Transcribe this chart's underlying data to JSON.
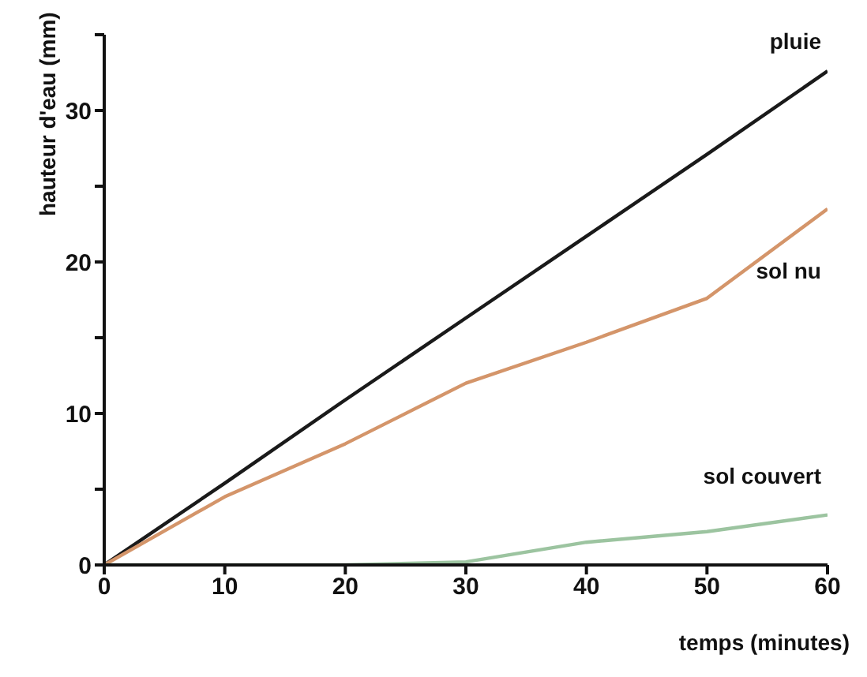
{
  "chart_data": {
    "type": "line",
    "xlabel": "temps (minutes)",
    "ylabel": "hauteur d'eau (mm)",
    "x": [
      0,
      10,
      20,
      30,
      40,
      50,
      60
    ],
    "series": [
      {
        "name": "pluie",
        "color": "#1a1a1a",
        "values": [
          0,
          5.4,
          10.9,
          16.3,
          21.7,
          27.1,
          32.6
        ]
      },
      {
        "name": "sol nu",
        "color": "#d4956a",
        "values": [
          0,
          4.5,
          8,
          12,
          14.7,
          17.6,
          23.5
        ]
      },
      {
        "name": "sol couvert",
        "color": "#9cc4a0",
        "values": [
          0,
          0,
          0,
          0.2,
          1.5,
          2.2,
          3.3
        ]
      }
    ],
    "xlim": [
      0,
      60
    ],
    "xticks": [
      0,
      10,
      20,
      30,
      40,
      50,
      60
    ],
    "ylim": [
      0,
      35
    ],
    "yticks": [
      0,
      {
        "value": 5,
        "label": null
      },
      10,
      {
        "value": 15,
        "label": null
      },
      20,
      {
        "value": 25,
        "label": null
      },
      30,
      {
        "value": 35,
        "label": null
      }
    ],
    "grid": false,
    "legend": false,
    "marker": "none",
    "line_style": "solid"
  }
}
